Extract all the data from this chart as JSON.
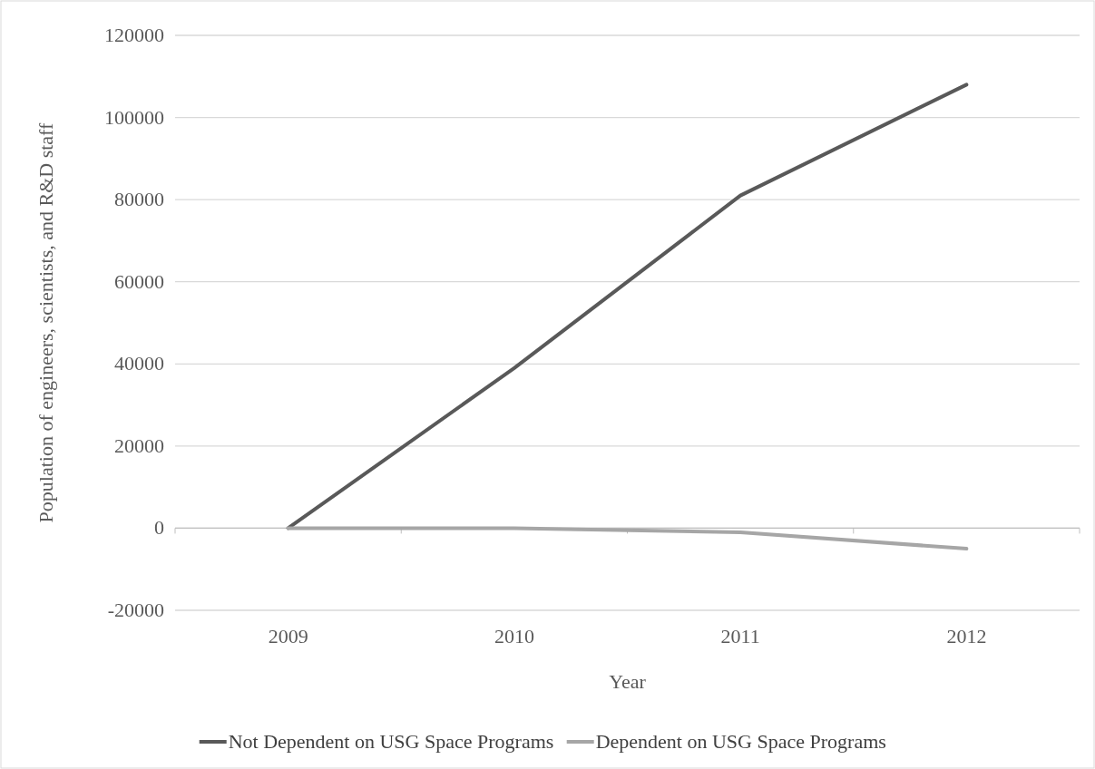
{
  "chart_data": {
    "type": "line",
    "xlabel": "Year",
    "ylabel": "Population of engineers, scientists, and R&D staff",
    "categories": [
      "2009",
      "2010",
      "2011",
      "2012"
    ],
    "series": [
      {
        "name": "Not Dependent on USG Space Programs",
        "color": "#595959",
        "values": [
          0,
          39000,
          81000,
          108000
        ]
      },
      {
        "name": "Dependent on USG Space Programs",
        "color": "#a6a6a6",
        "values": [
          0,
          0,
          -1000,
          -5000
        ]
      }
    ],
    "ylim": [
      -20000,
      120000
    ],
    "yticks": [
      -20000,
      0,
      20000,
      40000,
      60000,
      80000,
      100000,
      120000
    ],
    "grid": "y",
    "legend": "bottom",
    "marker": "none",
    "line_style": "solid"
  }
}
